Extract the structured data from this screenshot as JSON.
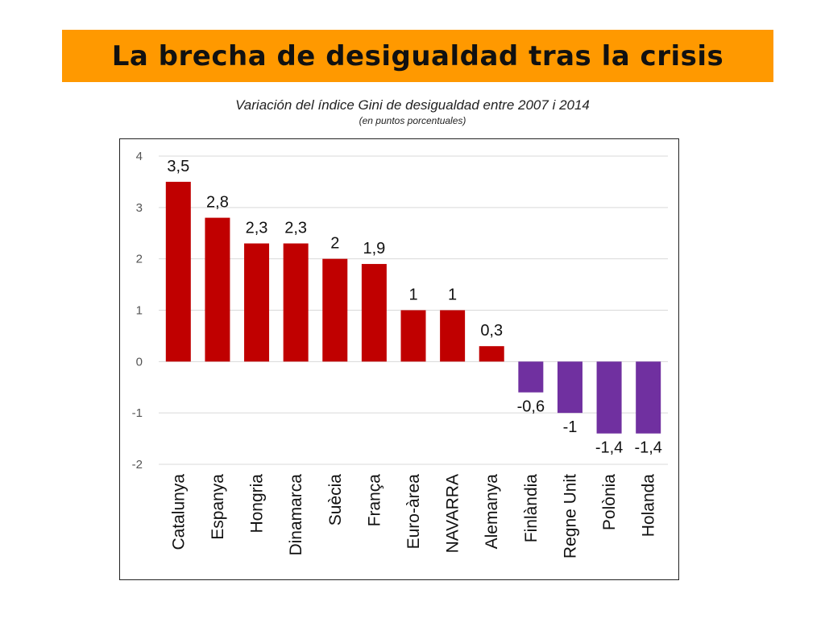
{
  "title": "La brecha de desigualdad tras la crisis",
  "subtitle": "Variación del índice Gini de desigualdad entre 2007 i 2014",
  "note": "(en puntos porcentuales)",
  "colors": {
    "title_bg": "#ff9900",
    "positive": "#c00000",
    "negative": "#7030a0"
  },
  "chart_data": {
    "type": "bar",
    "title": "Variación del índice Gini de desigualdad entre 2007 i 2014",
    "xlabel": "",
    "ylabel": "",
    "ylim": [
      -2,
      4
    ],
    "yticks": [
      4,
      3,
      2,
      1,
      0,
      -1,
      -2
    ],
    "grid": true,
    "legend": "none",
    "categories": [
      "Catalunya",
      "Espanya",
      "Hongria",
      "Dinamarca",
      "Suècia",
      "França",
      "Euro-àrea",
      "NAVARRA",
      "Alemanya",
      "Finlàndia",
      "Regne Unit",
      "Polònia",
      "Holanda"
    ],
    "values": [
      3.5,
      2.8,
      2.3,
      2.3,
      2,
      1.9,
      1,
      1,
      0.3,
      -0.6,
      -1,
      -1.4,
      -1.4
    ],
    "value_labels": [
      "3,5",
      "2,8",
      "2,3",
      "2,3",
      "2",
      "1,9",
      "1",
      "1",
      "0,3",
      "-0,6",
      "-1",
      "-1,4",
      "-1,4"
    ]
  }
}
